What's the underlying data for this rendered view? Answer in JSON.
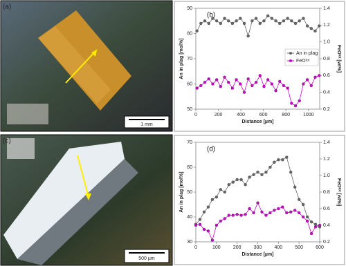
{
  "images": {
    "a": {
      "panel": "(a)",
      "scale": "1 mm"
    },
    "c": {
      "panel": "(c)",
      "scale": "500 µm"
    }
  },
  "chart_data": [
    {
      "type": "line",
      "panel": "(b)",
      "x_label": "Distance [µm]",
      "y_label": "An in plag [mol%]",
      "y2_label": "FeOᵗᵒᵗ [wt%]",
      "xlim": [
        0,
        1100
      ],
      "xticks": [
        0,
        200,
        400,
        600,
        800,
        1000
      ],
      "ylim": [
        50,
        90
      ],
      "yticks": [
        50,
        60,
        70,
        80,
        90
      ],
      "y2lim": [
        0.2,
        1.4
      ],
      "y2ticks": [
        0.2,
        0.4,
        0.6,
        0.8,
        {
          "value": 1,
          "label": "1.0"
        },
        1.2,
        1.4
      ],
      "legend": "right",
      "x": [
        10,
        45,
        80,
        115,
        150,
        185,
        220,
        255,
        290,
        325,
        360,
        395,
        430,
        465,
        500,
        535,
        570,
        605,
        640,
        675,
        710,
        745,
        780,
        815,
        850,
        885,
        920,
        955,
        990,
        1025,
        1060,
        1095
      ],
      "series": [
        {
          "name": "An in plag",
          "color": "#666666",
          "values": [
            81,
            84,
            85,
            84,
            86,
            85,
            84,
            86,
            85,
            84,
            85,
            86,
            84,
            79,
            85,
            86,
            84,
            85,
            87,
            86,
            85,
            84,
            85,
            86,
            85,
            84,
            85,
            86,
            83,
            82,
            81,
            83
          ]
        },
        {
          "name": "FeOᵗᵒᵗ",
          "color": "#cc00cc",
          "axis": "y2",
          "values": [
            0.45,
            0.48,
            0.52,
            0.56,
            0.5,
            0.55,
            0.47,
            0.58,
            0.52,
            0.45,
            0.55,
            0.5,
            0.4,
            0.56,
            0.48,
            0.52,
            0.6,
            0.47,
            0.55,
            0.5,
            0.42,
            0.53,
            0.48,
            0.45,
            0.27,
            0.24,
            0.3,
            0.5,
            0.55,
            0.48,
            0.58,
            0.6
          ]
        }
      ]
    },
    {
      "type": "line",
      "panel": "(d)",
      "x_label": "Distance [µm]",
      "y_label": "An in plag [mol%]",
      "y2_label": "FeOᵗᵒᵗ [wt%]",
      "xlim": [
        0,
        600
      ],
      "xticks": [
        0,
        100,
        200,
        300,
        400,
        500,
        600
      ],
      "ylim": [
        30,
        70
      ],
      "yticks": [
        30,
        40,
        50,
        60,
        70
      ],
      "y2lim": [
        0.2,
        1.4
      ],
      "y2ticks": [
        0.2,
        0.4,
        0.6,
        0.8,
        {
          "value": 1,
          "label": "1.0"
        },
        1.2,
        1.4
      ],
      "x": [
        0,
        20,
        40,
        60,
        80,
        100,
        120,
        140,
        160,
        180,
        200,
        220,
        240,
        260,
        280,
        300,
        320,
        340,
        360,
        380,
        400,
        420,
        440,
        460,
        480,
        500,
        520,
        540,
        560,
        580,
        600
      ],
      "series": [
        {
          "color": "#666666",
          "values": [
            37,
            39,
            42,
            44,
            47,
            48,
            51,
            50,
            53,
            54,
            55,
            55,
            53,
            56,
            57,
            58,
            57,
            58,
            60,
            62,
            63,
            63,
            64,
            58,
            52,
            47,
            45,
            40,
            38,
            37,
            36
          ]
        },
        {
          "color": "#cc00cc",
          "axis": "y2",
          "values": [
            0.4,
            0.41,
            0.35,
            0.33,
            0.22,
            0.4,
            0.45,
            0.48,
            0.52,
            0.52,
            0.53,
            0.52,
            0.53,
            0.6,
            0.55,
            0.67,
            0.56,
            0.52,
            0.55,
            0.58,
            0.6,
            0.62,
            0.55,
            0.56,
            0.58,
            0.55,
            0.5,
            0.45,
            0.3,
            0.38,
            0.4
          ]
        }
      ]
    }
  ]
}
